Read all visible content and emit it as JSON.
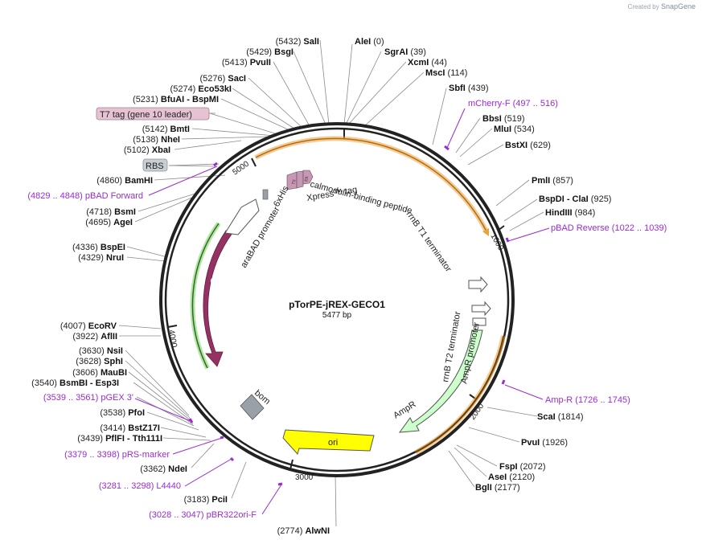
{
  "credit": {
    "prefix": "Created by",
    "brand": "SnapGene"
  },
  "title": "pTorPE-jREX-GECO1",
  "length": "5477 bp",
  "ticks": [
    "1000",
    "2000",
    "3000",
    "4000",
    "5000"
  ],
  "features": {
    "calmodulin": "calmodulin-binding peptide",
    "xpress": "Xpress™ tag",
    "sixhis": "6xHis",
    "arabad": "araBAD promoter",
    "arac": "araC",
    "rrnbt1": "rrnB T1 terminator",
    "rrnbt2": "rrnB T2 terminator",
    "ampr_promoter": "AmpR promoter",
    "ampr": "AmpR",
    "ori": "ori",
    "bom": "bom",
    "ts": "TS",
    "ek": "EK"
  },
  "boxed_labels": {
    "t7": "T7 tag (gene 10 leader)",
    "rbs": "RBS"
  },
  "sites_left": [
    {
      "pos": "(5432)",
      "name": "SalI"
    },
    {
      "pos": "(5429)",
      "name": "BsgI"
    },
    {
      "pos": "(5413)",
      "name": "PvuII"
    },
    {
      "pos": "(5276)",
      "name": "SacI"
    },
    {
      "pos": "(5274)",
      "name": "Eco53kI"
    },
    {
      "pos": "(5231)",
      "name": "BfuAI",
      "name2": "BspMI"
    },
    {
      "pos": "(5142)",
      "name": "BmtI"
    },
    {
      "pos": "(5138)",
      "name": "NheI"
    },
    {
      "pos": "(5102)",
      "name": "XbaI"
    },
    {
      "pos": "(4860)",
      "name": "BamHI"
    },
    {
      "pos": "(4718)",
      "name": "BsmI"
    },
    {
      "pos": "(4695)",
      "name": "AgeI"
    },
    {
      "pos": "(4336)",
      "name": "BspEI"
    },
    {
      "pos": "(4329)",
      "name": "NruI"
    },
    {
      "pos": "(4007)",
      "name": "EcoRV"
    },
    {
      "pos": "(3922)",
      "name": "AflII"
    },
    {
      "pos": "(3630)",
      "name": "NsiI"
    },
    {
      "pos": "(3628)",
      "name": "SphI"
    },
    {
      "pos": "(3606)",
      "name": "MauBI"
    },
    {
      "pos": "(3540)",
      "name": "BsmBI",
      "name2": "Esp3I"
    },
    {
      "pos": "(3538)",
      "name": "PfoI"
    },
    {
      "pos": "(3439)",
      "name": "PflFI",
      "name2": "Tth111I"
    },
    {
      "pos": "(3414)",
      "name": "BstZ17I"
    },
    {
      "pos": "(3362)",
      "name": "NdeI"
    },
    {
      "pos": "(3183)",
      "name": "PciI"
    },
    {
      "pos": "(2774)",
      "name": "AlwNI"
    }
  ],
  "sites_right": [
    {
      "pos": "(0)",
      "name": "AleI"
    },
    {
      "pos": "(39)",
      "name": "SgrAI"
    },
    {
      "pos": "(44)",
      "name": "XcmI"
    },
    {
      "pos": "(114)",
      "name": "MscI"
    },
    {
      "pos": "(439)",
      "name": "SbfI"
    },
    {
      "pos": "(519)",
      "name": "BbsI"
    },
    {
      "pos": "(534)",
      "name": "MluI"
    },
    {
      "pos": "(629)",
      "name": "BstXI"
    },
    {
      "pos": "(857)",
      "name": "PmlI"
    },
    {
      "pos": "(925)",
      "name": "BspDI",
      "name2": "ClaI"
    },
    {
      "pos": "(984)",
      "name": "HindIII"
    },
    {
      "pos": "(1814)",
      "name": "ScaI"
    },
    {
      "pos": "(1926)",
      "name": "PvuI"
    },
    {
      "pos": "(2072)",
      "name": "FspI"
    },
    {
      "pos": "(2120)",
      "name": "AseI"
    },
    {
      "pos": "(2177)",
      "name": "BglI"
    }
  ],
  "primers": [
    {
      "range": "(497 .. 516)",
      "name": "mCherry-F"
    },
    {
      "range": "(1022 .. 1039)",
      "name": "pBAD Reverse"
    },
    {
      "range": "(1726 .. 1745)",
      "name": "Amp-R"
    },
    {
      "range": "(4829 .. 4848)",
      "name": "pBAD Forward"
    },
    {
      "range": "(3539 .. 3561)",
      "name": "pGEX 3'"
    },
    {
      "range": "(3379 .. 3398)",
      "name": "pRS-marker"
    },
    {
      "range": "(3281 .. 3298)",
      "name": "L4440"
    },
    {
      "range": "(3028 .. 3047)",
      "name": "pBR322ori-F"
    }
  ],
  "colors": {
    "arac": "#963263",
    "ori": "#ffff00",
    "ampr": "#ccffcc",
    "bom": "#9aa0a8",
    "tag": "#c996b4",
    "primer": "#9a2bd6",
    "insert": "#e8a33d"
  }
}
